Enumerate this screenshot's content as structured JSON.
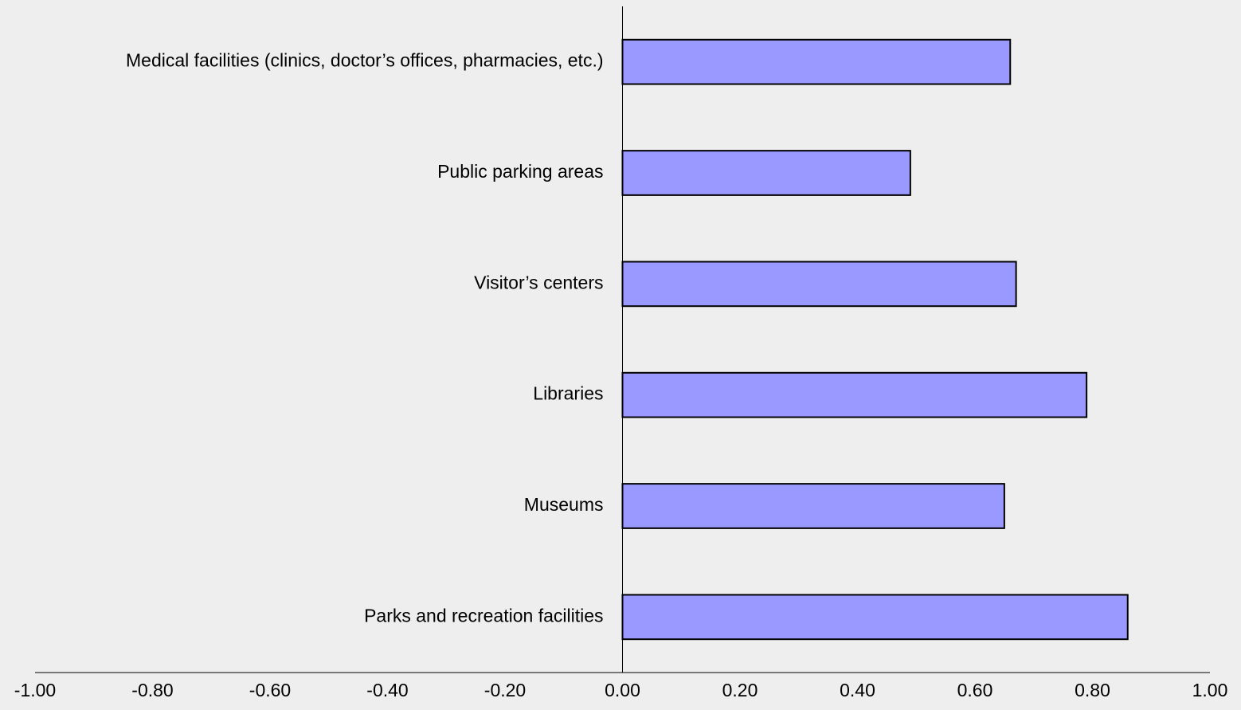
{
  "chart_data": {
    "type": "barh",
    "categories": [
      "Medical facilities (clinics, doctor’s offices, pharmacies, etc.)",
      "Public parking areas",
      "Visitor’s centers",
      "Libraries",
      "Museums",
      "Parks and recreation facilities"
    ],
    "values": [
      0.66,
      0.49,
      0.67,
      0.79,
      0.65,
      0.86
    ],
    "color": "#9999ff",
    "xlim": [
      -1,
      1
    ],
    "xticks": [
      {
        "value": -1,
        "label": "-1.00"
      },
      {
        "value": -0.8,
        "label": "-0.80"
      },
      {
        "value": -0.6,
        "label": "-0.60"
      },
      {
        "value": -0.4,
        "label": "-0.40"
      },
      {
        "value": -0.2,
        "label": "-0.20"
      },
      {
        "value": 0,
        "label": "0.00"
      },
      {
        "value": 0.2,
        "label": "0.20"
      },
      {
        "value": 0.4,
        "label": "0.40"
      },
      {
        "value": 0.6,
        "label": "0.60"
      },
      {
        "value": 0.8,
        "label": "0.80"
      },
      {
        "value": 1,
        "label": "1.00"
      }
    ]
  }
}
